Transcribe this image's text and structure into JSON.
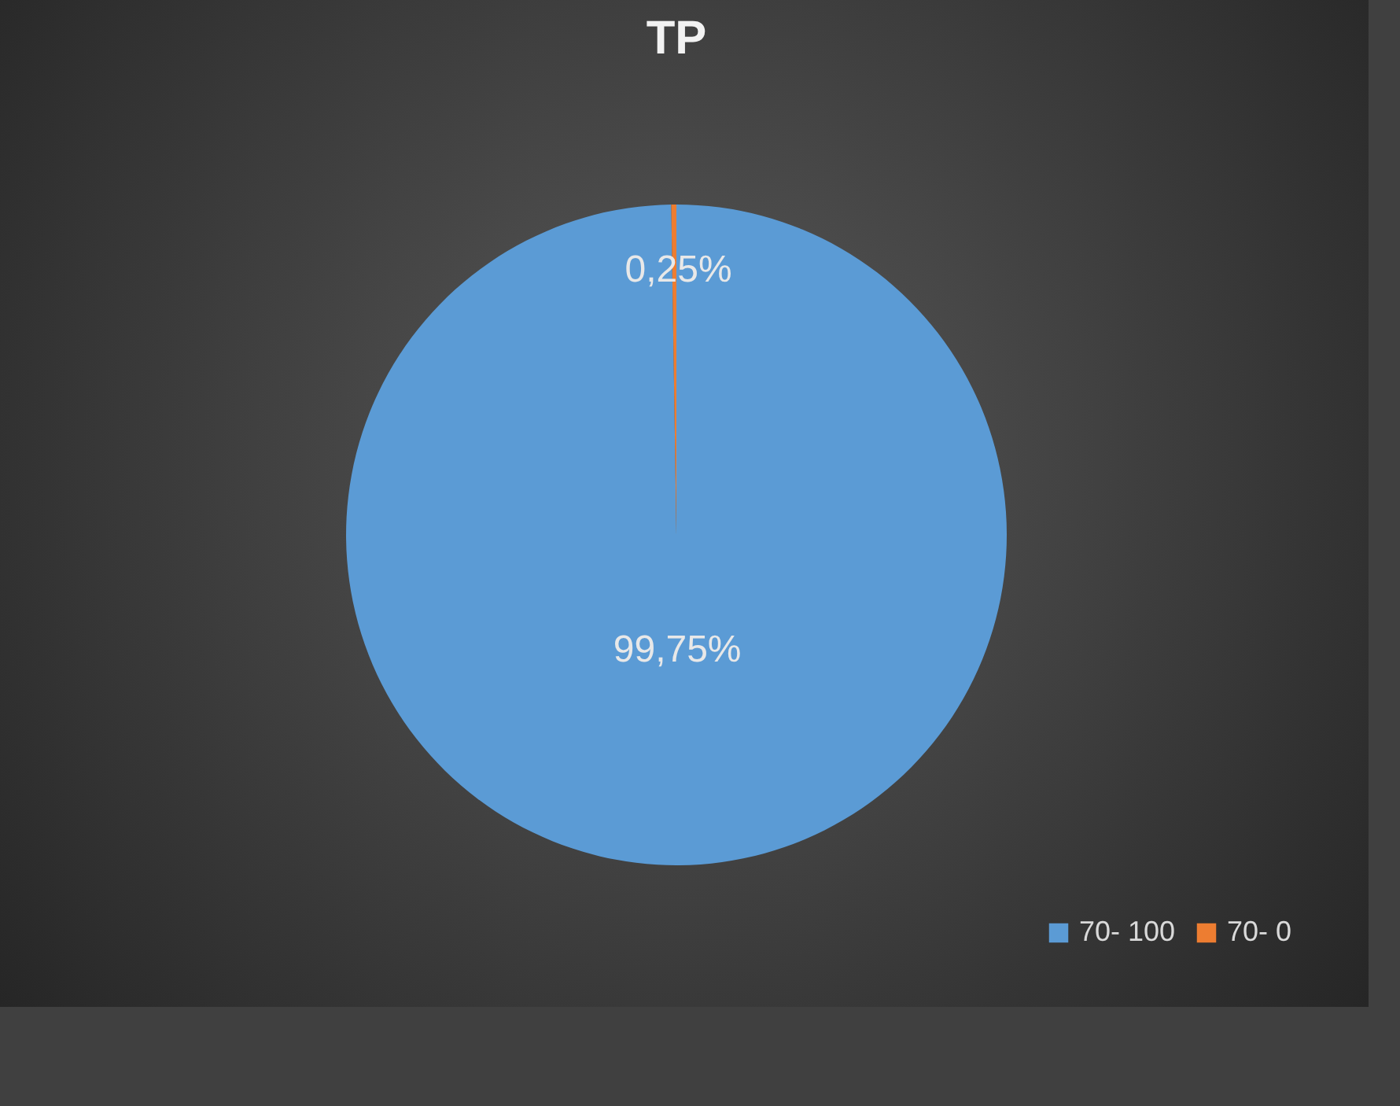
{
  "chart_data": {
    "type": "pie",
    "title": "TP",
    "categories": [
      "70- 100",
      "70- 0"
    ],
    "values": [
      99.75,
      0.25
    ],
    "colors": [
      "#5b9bd5",
      "#ed7d31"
    ],
    "value_labels": [
      "99,75%",
      "0,25%"
    ],
    "legend": "bottom right"
  }
}
